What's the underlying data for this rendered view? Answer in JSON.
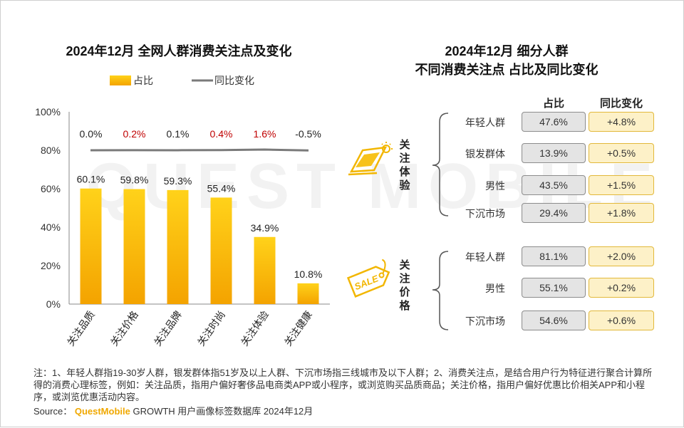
{
  "watermark": "QUEST MOBILE",
  "chart_data": [
    {
      "type": "bar",
      "title": "2024年12月 全网人群消费关注点及变化",
      "legend": [
        "占比",
        "同比变化"
      ],
      "categories": [
        "关注品质",
        "关注价格",
        "关注品牌",
        "关注时尚",
        "关注体验",
        "关注健康"
      ],
      "series": [
        {
          "name": "占比",
          "type": "bar",
          "values": [
            60.1,
            59.8,
            59.3,
            55.4,
            34.9,
            10.8
          ],
          "labels": [
            "60.1%",
            "59.8%",
            "59.3%",
            "55.4%",
            "34.9%",
            "10.8%"
          ]
        },
        {
          "name": "同比变化",
          "type": "line",
          "values": [
            0.0,
            0.2,
            0.1,
            0.4,
            1.6,
            -0.5
          ],
          "labels": [
            "0.0%",
            "0.2%",
            "0.1%",
            "0.4%",
            "1.6%",
            "-0.5%"
          ],
          "label_colors": [
            "#222222",
            "#c00000",
            "#222222",
            "#c00000",
            "#c00000",
            "#222222"
          ]
        }
      ],
      "yticks": [
        "0%",
        "20%",
        "40%",
        "60%",
        "80%",
        "100%"
      ],
      "ylim": [
        0,
        100
      ],
      "colors": {
        "bar_top": "#ffd21a",
        "bar_bottom": "#f4a300",
        "line": "#7a7a7a",
        "axis": "#888888"
      }
    },
    {
      "type": "table",
      "title_lines": [
        "2024年12月 细分人群",
        "不同消费关注点 占比及同比变化"
      ],
      "columns": [
        "占比",
        "同比变化"
      ],
      "groups": [
        {
          "name": "关注体验",
          "rows": [
            {
              "segment": "年轻人群",
              "share": "47.6%",
              "yoy": "+4.8%"
            },
            {
              "segment": "银发群体",
              "share": "13.9%",
              "yoy": "+0.5%"
            },
            {
              "segment": "男性",
              "share": "43.5%",
              "yoy": "+1.5%"
            },
            {
              "segment": "下沉市场",
              "share": "29.4%",
              "yoy": "+1.8%"
            }
          ]
        },
        {
          "name": "关注价格",
          "rows": [
            {
              "segment": "年轻人群",
              "share": "81.1%",
              "yoy": "+2.0%"
            },
            {
              "segment": "男性",
              "share": "55.1%",
              "yoy": "+0.2%"
            },
            {
              "segment": "下沉市场",
              "share": "54.6%",
              "yoy": "+0.6%"
            }
          ]
        }
      ]
    }
  ],
  "footnote": "注：1、年轻人群指19-30岁人群，银发群体指51岁及以上人群、下沉市场指三线城市及以下人群；2、消费关注点，是结合用户行为特征进行聚合计算所得的消费心理标签，例如：关注品质，指用户偏好奢侈品电商类APP或小程序，或浏览购买品质商品；关注价格，指用户偏好优惠比价相关APP和小程序，或浏览优惠活动内容。",
  "source": {
    "label": "Source：",
    "brand": "QuestMobile",
    "text": "GROWTH 用户画像标签数据库 2024年12月"
  }
}
